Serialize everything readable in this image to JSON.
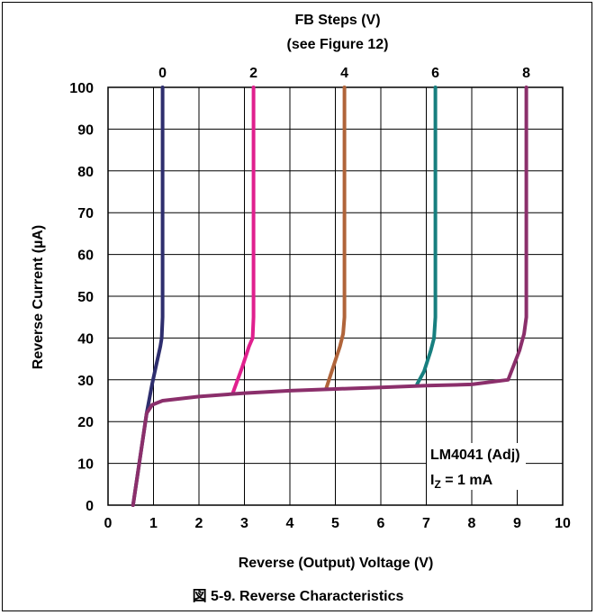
{
  "chart_data": {
    "type": "line",
    "top_title_line1": "FB Steps (V)",
    "top_title_line2": "(see Figure 12)",
    "xlabel": "Reverse (Output) Voltage (V)",
    "ylabel": "Reverse Current (µA)",
    "caption": "図 5-9. Reverse Characteristics",
    "annotation_line1": "LM4041 (Adj)",
    "annotation_line2_main": "I",
    "annotation_line2_sub": "Z",
    "annotation_line2_rest": " = 1 mA",
    "xlim": [
      0,
      10
    ],
    "ylim": [
      0,
      100
    ],
    "x_ticks": [
      0,
      1,
      2,
      3,
      4,
      5,
      6,
      7,
      8,
      9,
      10
    ],
    "y_ticks": [
      0,
      10,
      20,
      30,
      40,
      50,
      60,
      70,
      80,
      90,
      100
    ],
    "grid": true,
    "series": [
      {
        "top_label": "0",
        "color": "#2e2e6e",
        "points": [
          [
            0.55,
            0
          ],
          [
            0.85,
            22
          ],
          [
            0.97,
            29
          ],
          [
            1.05,
            33
          ],
          [
            1.15,
            38
          ],
          [
            1.18,
            40
          ],
          [
            1.2,
            45
          ],
          [
            1.2,
            100
          ]
        ]
      },
      {
        "top_label": "2",
        "color": "#e0208e",
        "points": [
          [
            2.75,
            27
          ],
          [
            2.95,
            33
          ],
          [
            3.1,
            38
          ],
          [
            3.18,
            40
          ],
          [
            3.2,
            45
          ],
          [
            3.2,
            100
          ]
        ]
      },
      {
        "top_label": "4",
        "color": "#b0643a",
        "points": [
          [
            4.8,
            28
          ],
          [
            4.95,
            33
          ],
          [
            5.1,
            38
          ],
          [
            5.17,
            41
          ],
          [
            5.2,
            45
          ],
          [
            5.2,
            100
          ]
        ]
      },
      {
        "top_label": "6",
        "color": "#177f7f",
        "points": [
          [
            6.8,
            29
          ],
          [
            6.95,
            32
          ],
          [
            7.1,
            37
          ],
          [
            7.17,
            40
          ],
          [
            7.2,
            45
          ],
          [
            7.2,
            100
          ]
        ]
      },
      {
        "top_label": "8",
        "color": "#8b2f6b",
        "points": [
          [
            0.55,
            0
          ],
          [
            0.85,
            22
          ],
          [
            0.97,
            24
          ],
          [
            1.2,
            25
          ],
          [
            2.0,
            26
          ],
          [
            3.0,
            26.8
          ],
          [
            4.0,
            27.4
          ],
          [
            5.0,
            27.8
          ],
          [
            6.0,
            28.2
          ],
          [
            7.0,
            28.6
          ],
          [
            8.0,
            28.9
          ],
          [
            8.8,
            30
          ],
          [
            9.05,
            37
          ],
          [
            9.15,
            41
          ],
          [
            9.2,
            45
          ],
          [
            9.2,
            100
          ]
        ]
      }
    ]
  }
}
